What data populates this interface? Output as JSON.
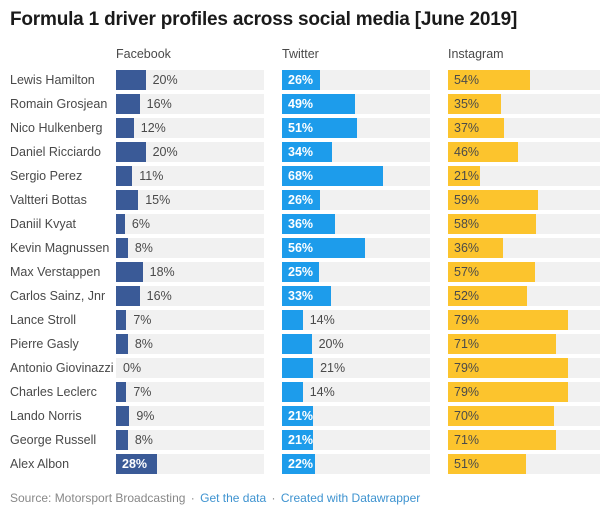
{
  "title": "Formula 1 driver profiles across social media [June 2019]",
  "footer": {
    "source_text": "Source: Motorsport Broadcasting",
    "separator": "·",
    "get_data_label": "Get the data",
    "created_with_label": "Created with Datawrapper",
    "link_color": "#3e93d0",
    "text_color": "#888888"
  },
  "chart_data": {
    "type": "bar",
    "title": "Formula 1 driver profiles across social media [June 2019]",
    "xlabel": "",
    "ylabel": "",
    "xlim": [
      0,
      100
    ],
    "value_suffix": "%",
    "grid": false,
    "legend_position": "column-headers",
    "track_color": "#f1f1f1",
    "outside_label_color": "#4a4a4a",
    "categories": [
      "Lewis Hamilton",
      "Romain Grosjean",
      "Nico Hulkenberg",
      "Daniel Ricciardo",
      "Sergio Perez",
      "Valtteri Bottas",
      "Daniil Kvyat",
      "Kevin Magnussen",
      "Max Verstappen",
      "Carlos Sainz, Jnr",
      "Lance Stroll",
      "Pierre Gasly",
      "Antonio Giovinazzi",
      "Charles Leclerc",
      "Lando Norris",
      "George Russell",
      "Alex Albon"
    ],
    "series": [
      {
        "name": "Facebook",
        "color": "#3a5a97",
        "inside_label_color": "#ffffff",
        "inside_label_bold": true,
        "values": [
          20,
          16,
          12,
          20,
          11,
          15,
          6,
          8,
          18,
          16,
          7,
          8,
          0,
          7,
          9,
          8,
          28
        ],
        "label_inside": [
          false,
          false,
          false,
          false,
          false,
          false,
          false,
          false,
          false,
          false,
          false,
          false,
          false,
          false,
          false,
          false,
          true
        ]
      },
      {
        "name": "Twitter",
        "color": "#1d9ceb",
        "inside_label_color": "#ffffff",
        "inside_label_bold": true,
        "values": [
          26,
          49,
          51,
          34,
          68,
          26,
          36,
          56,
          25,
          33,
          14,
          20,
          21,
          14,
          21,
          21,
          22
        ],
        "label_inside": [
          true,
          true,
          true,
          true,
          true,
          true,
          true,
          true,
          true,
          true,
          false,
          false,
          false,
          false,
          true,
          true,
          true
        ]
      },
      {
        "name": "Instagram",
        "color": "#fcc42d",
        "inside_label_color": "#4a4a4a",
        "inside_label_bold": false,
        "values": [
          54,
          35,
          37,
          46,
          21,
          59,
          58,
          36,
          57,
          52,
          79,
          71,
          79,
          79,
          70,
          71,
          51
        ],
        "label_inside": [
          true,
          true,
          true,
          true,
          true,
          true,
          true,
          true,
          true,
          true,
          true,
          true,
          true,
          true,
          true,
          true,
          true
        ]
      }
    ]
  }
}
